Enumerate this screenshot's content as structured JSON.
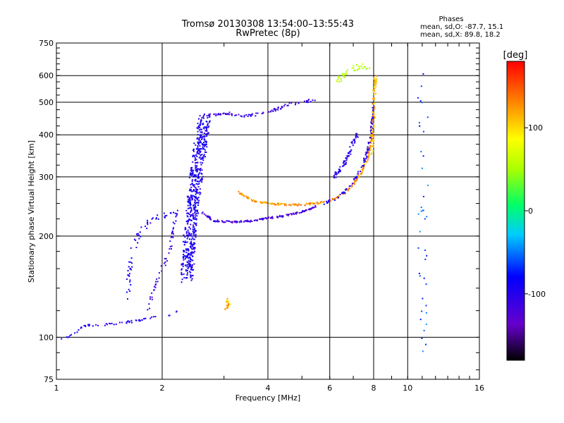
{
  "chart_data": {
    "type": "scatter",
    "title": "Tromsø 20130308 13:54:00–13:55:43",
    "subtitle": "RwPretec (8p)",
    "xlabel": "Frequency [MHz]",
    "ylabel": "Stationary phase Virtual Height [km]",
    "xscale": "log",
    "yscale": "log",
    "xlim": [
      1,
      16
    ],
    "ylim": [
      75,
      750
    ],
    "x_ticks": [
      1,
      2,
      4,
      6,
      8,
      10,
      16
    ],
    "x_tick_labels": [
      "1",
      "2",
      "4",
      "6",
      "8",
      "10",
      "16"
    ],
    "y_ticks": [
      75,
      100,
      200,
      300,
      400,
      500,
      600,
      750
    ],
    "y_tick_labels": [
      "75",
      "100",
      "200",
      "300",
      "400",
      "500",
      "600",
      "750"
    ],
    "grid": true,
    "info": {
      "heading": "Phases",
      "line1": "mean, sd,O: -87.7, 15.1",
      "line2": "mean, sd,X:  89.8, 18.2"
    },
    "colorbar": {
      "label": "[deg]",
      "range": [
        -180,
        180
      ],
      "ticks": [
        100,
        0,
        -100
      ],
      "tick_labels": [
        "100",
        "0",
        "-100"
      ]
    },
    "traces": [
      {
        "name": "o-e-low",
        "phase": -100,
        "spread": 0.006,
        "n": 60,
        "pts": [
          [
            1.0,
            98
          ],
          [
            1.1,
            101
          ],
          [
            1.2,
            108
          ],
          [
            1.35,
            109
          ],
          [
            1.5,
            110
          ],
          [
            1.7,
            112
          ],
          [
            1.9,
            115
          ],
          [
            2.1,
            117
          ],
          [
            2.25,
            120
          ]
        ]
      },
      {
        "name": "o-e-rise",
        "phase": -110,
        "spread": 0.01,
        "n": 50,
        "pts": [
          [
            1.82,
            120
          ],
          [
            1.9,
            140
          ],
          [
            2.0,
            160
          ],
          [
            2.1,
            180
          ],
          [
            2.15,
            210
          ],
          [
            2.2,
            235
          ]
        ]
      },
      {
        "name": "o-f1-low",
        "phase": -95,
        "spread": 0.015,
        "n": 60,
        "pts": [
          [
            1.6,
            130
          ],
          [
            1.62,
            160
          ],
          [
            1.65,
            180
          ],
          [
            1.75,
            210
          ],
          [
            1.9,
            225
          ],
          [
            2.05,
            230
          ],
          [
            2.2,
            235
          ]
        ]
      },
      {
        "name": "o-f-cusp",
        "phase": -95,
        "spread": 0.04,
        "n": 600,
        "pts": [
          [
            2.35,
            150
          ],
          [
            2.4,
            200
          ],
          [
            2.45,
            250
          ],
          [
            2.5,
            300
          ],
          [
            2.55,
            350
          ],
          [
            2.6,
            400
          ],
          [
            2.65,
            450
          ]
        ]
      },
      {
        "name": "o-f-base",
        "phase": -120,
        "spread": 0.005,
        "n": 150,
        "pts": [
          [
            2.6,
            235
          ],
          [
            2.8,
            222
          ],
          [
            3.2,
            220
          ],
          [
            3.6,
            222
          ],
          [
            4.0,
            226
          ],
          [
            4.5,
            230
          ],
          [
            5.0,
            236
          ],
          [
            5.5,
            245
          ]
        ]
      },
      {
        "name": "o-f2-upper",
        "phase": -110,
        "spread": 0.008,
        "n": 90,
        "pts": [
          [
            2.7,
            455
          ],
          [
            3.0,
            465
          ],
          [
            3.5,
            455
          ],
          [
            4.0,
            465
          ],
          [
            4.5,
            490
          ],
          [
            5.0,
            500
          ],
          [
            5.5,
            510
          ]
        ]
      },
      {
        "name": "x-f-main",
        "phase": 125,
        "spread": 0.005,
        "n": 220,
        "pts": [
          [
            3.3,
            270
          ],
          [
            3.6,
            255
          ],
          [
            4.0,
            250
          ],
          [
            4.5,
            248
          ],
          [
            5.0,
            248
          ],
          [
            5.5,
            250
          ],
          [
            6.0,
            255
          ],
          [
            6.5,
            265
          ],
          [
            7.0,
            285
          ],
          [
            7.4,
            310
          ],
          [
            7.7,
            340
          ],
          [
            7.85,
            380
          ],
          [
            7.95,
            420
          ]
        ]
      },
      {
        "name": "o-f-upper",
        "phase": -105,
        "spread": 0.007,
        "n": 110,
        "pts": [
          [
            5.8,
            250
          ],
          [
            6.2,
            258
          ],
          [
            6.6,
            270
          ],
          [
            7.0,
            290
          ],
          [
            7.4,
            320
          ],
          [
            7.7,
            360
          ],
          [
            7.85,
            400
          ],
          [
            7.95,
            450
          ],
          [
            8.0,
            500
          ]
        ]
      },
      {
        "name": "o-oblique",
        "phase": -100,
        "spread": 0.01,
        "n": 70,
        "pts": [
          [
            6.2,
            300
          ],
          [
            6.4,
            315
          ],
          [
            6.6,
            330
          ],
          [
            6.8,
            350
          ],
          [
            7.0,
            380
          ],
          [
            7.2,
            400
          ]
        ]
      },
      {
        "name": "x-cusp",
        "phase": 110,
        "spread": 0.01,
        "n": 80,
        "pts": [
          [
            7.9,
            350
          ],
          [
            7.95,
            400
          ],
          [
            8.0,
            450
          ],
          [
            8.02,
            500
          ],
          [
            8.05,
            550
          ],
          [
            8.1,
            600
          ]
        ]
      },
      {
        "name": "upper-scatter",
        "phase": 60,
        "spread": 0.015,
        "n": 40,
        "pts": [
          [
            6.3,
            580
          ],
          [
            6.6,
            610
          ],
          [
            7.0,
            630
          ],
          [
            7.4,
            640
          ],
          [
            7.8,
            620
          ]
        ]
      },
      {
        "name": "x-low-patch",
        "phase": 115,
        "spread": 0.008,
        "n": 20,
        "pts": [
          [
            3.0,
            120
          ],
          [
            3.1,
            125
          ],
          [
            3.05,
            130
          ]
        ]
      },
      {
        "name": "right-edge",
        "phase": -60,
        "spread": 0.03,
        "n": 40,
        "pts": [
          [
            11.0,
            90
          ],
          [
            11.0,
            200
          ],
          [
            11.2,
            350
          ],
          [
            11.0,
            500
          ],
          [
            11.3,
            620
          ]
        ]
      }
    ]
  }
}
